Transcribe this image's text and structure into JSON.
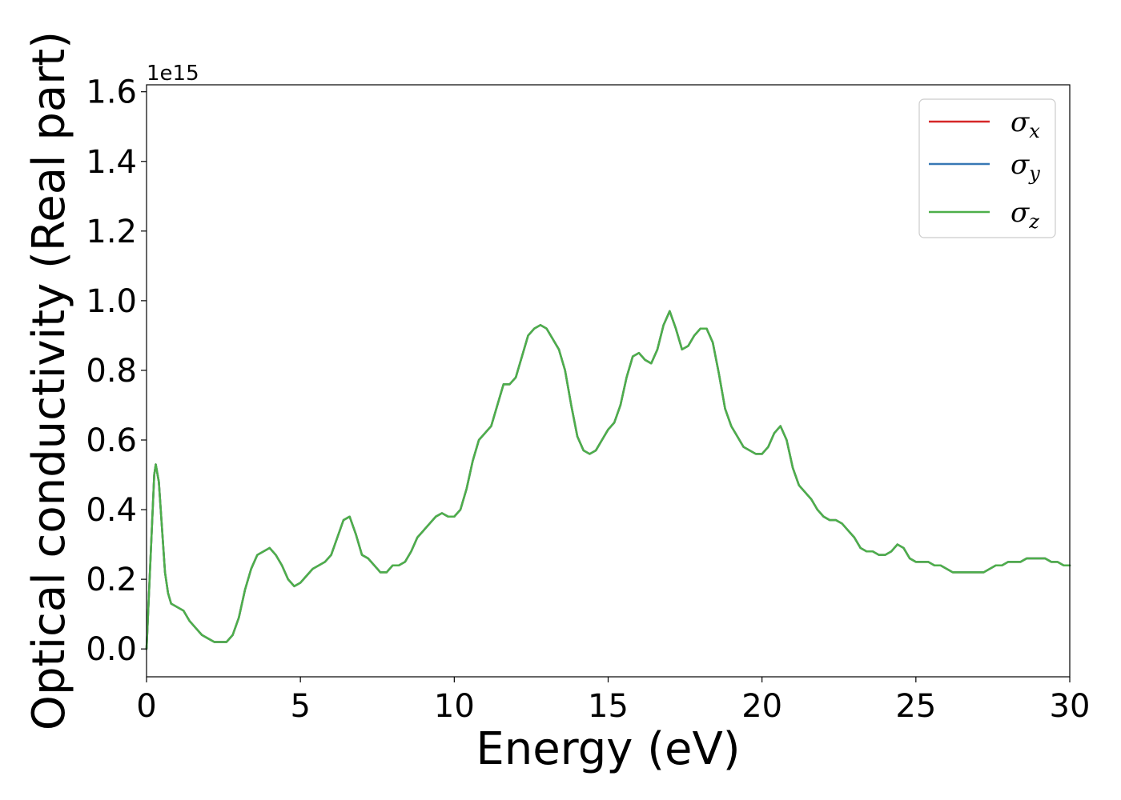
{
  "chart_data": {
    "type": "line",
    "title": "",
    "xlabel": "Energy (eV)",
    "ylabel": "Optical conductivity (Real part)",
    "y_offset_label": "1e15",
    "xlim": [
      0,
      30
    ],
    "ylim": [
      -0.08,
      1.62
    ],
    "x_ticks": [
      0,
      5,
      10,
      15,
      20,
      25,
      30
    ],
    "x_tick_labels": [
      "0",
      "5",
      "10",
      "15",
      "20",
      "25",
      "30"
    ],
    "y_ticks": [
      0.0,
      0.2,
      0.4,
      0.6,
      0.8,
      1.0,
      1.2,
      1.4,
      1.6
    ],
    "y_tick_labels": [
      "0.0",
      "0.2",
      "0.4",
      "0.6",
      "0.8",
      "1.0",
      "1.2",
      "1.4",
      "1.6"
    ],
    "grid": false,
    "legend_position": "top-right",
    "x": [
      0,
      0.15,
      0.25,
      0.3,
      0.4,
      0.5,
      0.6,
      0.7,
      0.8,
      1.0,
      1.2,
      1.4,
      1.6,
      1.8,
      2.0,
      2.2,
      2.4,
      2.6,
      2.8,
      3.0,
      3.2,
      3.4,
      3.6,
      3.8,
      4.0,
      4.2,
      4.4,
      4.6,
      4.8,
      5.0,
      5.2,
      5.4,
      5.6,
      5.8,
      6.0,
      6.2,
      6.4,
      6.6,
      6.8,
      7.0,
      7.2,
      7.4,
      7.6,
      7.8,
      8.0,
      8.2,
      8.4,
      8.6,
      8.8,
      9.0,
      9.2,
      9.4,
      9.6,
      9.8,
      10.0,
      10.2,
      10.4,
      10.6,
      10.8,
      11.0,
      11.2,
      11.4,
      11.6,
      11.8,
      12.0,
      12.2,
      12.4,
      12.6,
      12.8,
      13.0,
      13.2,
      13.4,
      13.6,
      13.8,
      14.0,
      14.2,
      14.4,
      14.6,
      14.8,
      15.0,
      15.2,
      15.4,
      15.6,
      15.8,
      16.0,
      16.2,
      16.4,
      16.6,
      16.8,
      17.0,
      17.2,
      17.4,
      17.6,
      17.8,
      18.0,
      18.2,
      18.4,
      18.6,
      18.8,
      19.0,
      19.2,
      19.4,
      19.6,
      19.8,
      20.0,
      20.2,
      20.4,
      20.6,
      20.8,
      21.0,
      21.2,
      21.4,
      21.6,
      21.8,
      22.0,
      22.2,
      22.4,
      22.6,
      22.8,
      23.0,
      23.2,
      23.4,
      23.6,
      23.8,
      24.0,
      24.2,
      24.4,
      24.6,
      24.8,
      25.0,
      25.2,
      25.4,
      25.6,
      25.8,
      26.0,
      26.2,
      26.4,
      26.6,
      26.8,
      27.0,
      27.2,
      27.4,
      27.6,
      27.8,
      28.0,
      28.2,
      28.4,
      28.6,
      28.8,
      29.0,
      29.2,
      29.4,
      29.6,
      29.8,
      30.0
    ],
    "series": [
      {
        "name": "σx",
        "color": "#d62728",
        "values": [
          0.0,
          0.3,
          0.5,
          0.53,
          0.48,
          0.35,
          0.22,
          0.16,
          0.13,
          0.12,
          0.11,
          0.08,
          0.06,
          0.04,
          0.03,
          0.02,
          0.02,
          0.02,
          0.04,
          0.09,
          0.17,
          0.23,
          0.27,
          0.28,
          0.29,
          0.27,
          0.24,
          0.2,
          0.18,
          0.19,
          0.21,
          0.23,
          0.24,
          0.25,
          0.27,
          0.32,
          0.37,
          0.38,
          0.33,
          0.27,
          0.26,
          0.24,
          0.22,
          0.22,
          0.24,
          0.24,
          0.25,
          0.28,
          0.32,
          0.34,
          0.36,
          0.38,
          0.39,
          0.38,
          0.38,
          0.4,
          0.46,
          0.54,
          0.6,
          0.62,
          0.64,
          0.7,
          0.76,
          0.76,
          0.78,
          0.84,
          0.9,
          0.92,
          0.93,
          0.92,
          0.89,
          0.86,
          0.8,
          0.7,
          0.61,
          0.57,
          0.56,
          0.57,
          0.6,
          0.63,
          0.65,
          0.7,
          0.78,
          0.84,
          0.85,
          0.83,
          0.82,
          0.86,
          0.93,
          0.97,
          0.92,
          0.86,
          0.87,
          0.9,
          0.92,
          0.92,
          0.88,
          0.79,
          0.69,
          0.64,
          0.61,
          0.58,
          0.57,
          0.56,
          0.56,
          0.58,
          0.62,
          0.64,
          0.6,
          0.52,
          0.47,
          0.45,
          0.43,
          0.4,
          0.38,
          0.37,
          0.37,
          0.36,
          0.34,
          0.32,
          0.29,
          0.28,
          0.28,
          0.27,
          0.27,
          0.28,
          0.3,
          0.29,
          0.26,
          0.25,
          0.25,
          0.25,
          0.24,
          0.24,
          0.23,
          0.22,
          0.22,
          0.22,
          0.22,
          0.22,
          0.22,
          0.23,
          0.24,
          0.24,
          0.25,
          0.25,
          0.25,
          0.26,
          0.26,
          0.26,
          0.26,
          0.25,
          0.25,
          0.24,
          0.24
        ]
      },
      {
        "name": "σy",
        "color": "#3778b4",
        "values": [
          0.0,
          0.3,
          0.5,
          0.53,
          0.48,
          0.35,
          0.22,
          0.16,
          0.13,
          0.12,
          0.11,
          0.08,
          0.06,
          0.04,
          0.03,
          0.02,
          0.02,
          0.02,
          0.04,
          0.09,
          0.17,
          0.23,
          0.27,
          0.28,
          0.29,
          0.27,
          0.24,
          0.2,
          0.18,
          0.19,
          0.21,
          0.23,
          0.24,
          0.25,
          0.27,
          0.32,
          0.37,
          0.38,
          0.33,
          0.27,
          0.26,
          0.24,
          0.22,
          0.22,
          0.24,
          0.24,
          0.25,
          0.28,
          0.32,
          0.34,
          0.36,
          0.38,
          0.39,
          0.38,
          0.38,
          0.4,
          0.46,
          0.54,
          0.6,
          0.62,
          0.64,
          0.7,
          0.76,
          0.76,
          0.78,
          0.84,
          0.9,
          0.92,
          0.93,
          0.92,
          0.89,
          0.86,
          0.8,
          0.7,
          0.61,
          0.57,
          0.56,
          0.57,
          0.6,
          0.63,
          0.65,
          0.7,
          0.78,
          0.84,
          0.85,
          0.83,
          0.82,
          0.86,
          0.93,
          0.97,
          0.92,
          0.86,
          0.87,
          0.9,
          0.92,
          0.92,
          0.88,
          0.79,
          0.69,
          0.64,
          0.61,
          0.58,
          0.57,
          0.56,
          0.56,
          0.58,
          0.62,
          0.64,
          0.6,
          0.52,
          0.47,
          0.45,
          0.43,
          0.4,
          0.38,
          0.37,
          0.37,
          0.36,
          0.34,
          0.32,
          0.29,
          0.28,
          0.28,
          0.27,
          0.27,
          0.28,
          0.3,
          0.29,
          0.26,
          0.25,
          0.25,
          0.25,
          0.24,
          0.24,
          0.23,
          0.22,
          0.22,
          0.22,
          0.22,
          0.22,
          0.22,
          0.23,
          0.24,
          0.24,
          0.25,
          0.25,
          0.25,
          0.26,
          0.26,
          0.26,
          0.26,
          0.25,
          0.25,
          0.24,
          0.24
        ]
      },
      {
        "name": "σz",
        "color": "#4daf4a",
        "values": [
          0.0,
          0.3,
          0.5,
          0.53,
          0.48,
          0.35,
          0.22,
          0.16,
          0.13,
          0.12,
          0.11,
          0.08,
          0.06,
          0.04,
          0.03,
          0.02,
          0.02,
          0.02,
          0.04,
          0.09,
          0.17,
          0.23,
          0.27,
          0.28,
          0.29,
          0.27,
          0.24,
          0.2,
          0.18,
          0.19,
          0.21,
          0.23,
          0.24,
          0.25,
          0.27,
          0.32,
          0.37,
          0.38,
          0.33,
          0.27,
          0.26,
          0.24,
          0.22,
          0.22,
          0.24,
          0.24,
          0.25,
          0.28,
          0.32,
          0.34,
          0.36,
          0.38,
          0.39,
          0.38,
          0.38,
          0.4,
          0.46,
          0.54,
          0.6,
          0.62,
          0.64,
          0.7,
          0.76,
          0.76,
          0.78,
          0.84,
          0.9,
          0.92,
          0.93,
          0.92,
          0.89,
          0.86,
          0.8,
          0.7,
          0.61,
          0.57,
          0.56,
          0.57,
          0.6,
          0.63,
          0.65,
          0.7,
          0.78,
          0.84,
          0.85,
          0.83,
          0.82,
          0.86,
          0.93,
          0.97,
          0.92,
          0.86,
          0.87,
          0.9,
          0.92,
          0.92,
          0.88,
          0.79,
          0.69,
          0.64,
          0.61,
          0.58,
          0.57,
          0.56,
          0.56,
          0.58,
          0.62,
          0.64,
          0.6,
          0.52,
          0.47,
          0.45,
          0.43,
          0.4,
          0.38,
          0.37,
          0.37,
          0.36,
          0.34,
          0.32,
          0.29,
          0.28,
          0.28,
          0.27,
          0.27,
          0.28,
          0.3,
          0.29,
          0.26,
          0.25,
          0.25,
          0.25,
          0.24,
          0.24,
          0.23,
          0.22,
          0.22,
          0.22,
          0.22,
          0.22,
          0.22,
          0.23,
          0.24,
          0.24,
          0.25,
          0.25,
          0.25,
          0.26,
          0.26,
          0.26,
          0.26,
          0.25,
          0.25,
          0.24,
          0.24
        ]
      }
    ],
    "legend": [
      {
        "symbol": "σ",
        "subscript": "x"
      },
      {
        "symbol": "σ",
        "subscript": "y"
      },
      {
        "symbol": "σ",
        "subscript": "z"
      }
    ]
  }
}
